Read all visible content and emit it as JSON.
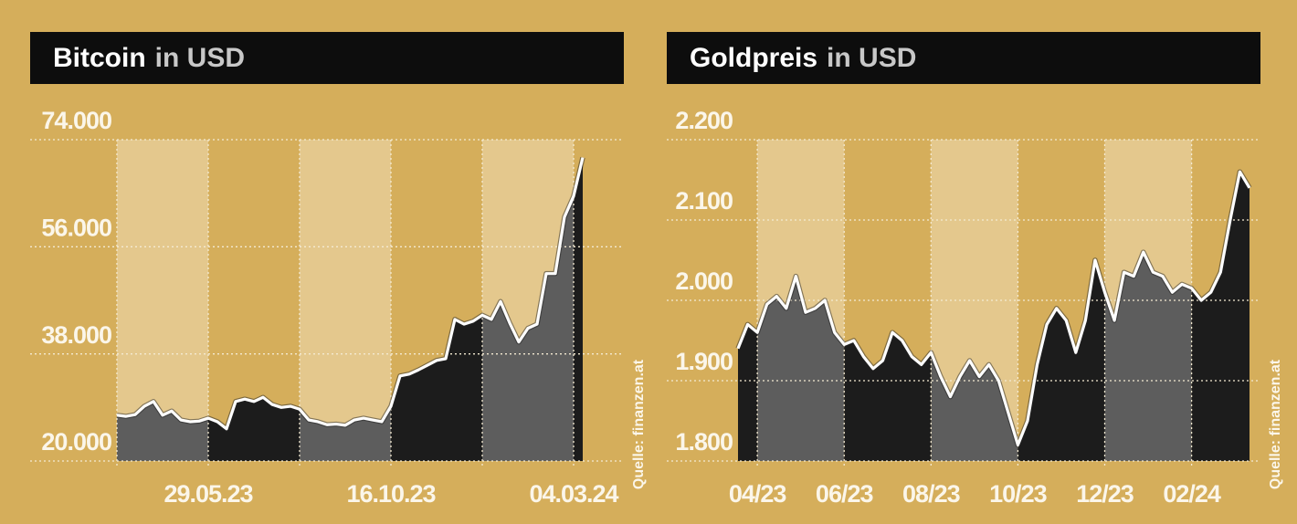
{
  "chart_data": [
    {
      "type": "area",
      "title": "Bitcoin",
      "unit": "in USD",
      "source": "Quelle: finanzen.at",
      "categories": [
        null,
        null,
        null,
        null,
        null,
        null,
        null,
        null,
        null,
        null,
        "29.05.23",
        null,
        null,
        null,
        null,
        null,
        null,
        null,
        null,
        null,
        null,
        null,
        null,
        null,
        null,
        null,
        null,
        null,
        null,
        null,
        "16.10.23",
        null,
        null,
        null,
        null,
        null,
        null,
        null,
        null,
        null,
        null,
        null,
        null,
        null,
        null,
        null,
        null,
        null,
        null,
        null,
        "04.03.24",
        null
      ],
      "values": [
        27700,
        27500,
        27800,
        29200,
        30000,
        27700,
        28400,
        26900,
        26600,
        26700,
        27200,
        26600,
        25400,
        30000,
        30400,
        30000,
        30700,
        29500,
        29000,
        29200,
        28700,
        26900,
        26600,
        26100,
        26200,
        26000,
        26900,
        27200,
        26900,
        26600,
        29200,
        34300,
        34600,
        35300,
        36100,
        36900,
        37200,
        43800,
        43000,
        43500,
        44500,
        43800,
        46800,
        43200,
        40000,
        42300,
        43000,
        51500,
        51500,
        61000,
        64500,
        71000
      ],
      "xticks": [
        0,
        10,
        20,
        30,
        40,
        50
      ],
      "ylim": [
        20000,
        74000
      ],
      "yticks": [
        {
          "value": 20000,
          "label": "20.000"
        },
        {
          "value": 38000,
          "label": "38.000"
        },
        {
          "value": 56000,
          "label": "56.000"
        },
        {
          "value": 74000,
          "label": "74.000"
        }
      ],
      "grid": true,
      "colors": {
        "band": "#e4c88d",
        "area": [
          "#5d5d5d",
          "#1c1c1c"
        ],
        "line": "#ffffff"
      }
    },
    {
      "type": "area",
      "title": "Goldpreis",
      "unit": "in USD",
      "source": "Quelle: finanzen.at",
      "categories": [
        null,
        null,
        "04/23",
        null,
        null,
        null,
        null,
        null,
        null,
        null,
        null,
        "06/23",
        null,
        null,
        null,
        null,
        null,
        null,
        null,
        null,
        "08/23",
        null,
        null,
        null,
        null,
        null,
        null,
        null,
        null,
        "10/23",
        null,
        null,
        null,
        null,
        null,
        null,
        null,
        null,
        "12/23",
        null,
        null,
        null,
        null,
        null,
        null,
        null,
        null,
        "02/24",
        null,
        null,
        null,
        null,
        null,
        null
      ],
      "values": [
        1940,
        1970,
        1960,
        1995,
        2005,
        1990,
        2030,
        1985,
        1990,
        2000,
        1960,
        1945,
        1950,
        1930,
        1915,
        1925,
        1960,
        1950,
        1930,
        1920,
        1935,
        1905,
        1880,
        1905,
        1925,
        1905,
        1920,
        1900,
        1860,
        1820,
        1850,
        1920,
        1970,
        1990,
        1975,
        1935,
        1975,
        2050,
        2010,
        1975,
        2035,
        2030,
        2060,
        2035,
        2030,
        2010,
        2020,
        2015,
        2000,
        2010,
        2035,
        2100,
        2160,
        2140
      ],
      "xticks": [
        2,
        11,
        20,
        29,
        38,
        47
      ],
      "ylim": [
        1800,
        2200
      ],
      "yticks": [
        {
          "value": 1800,
          "label": "1.800"
        },
        {
          "value": 1900,
          "label": "1.900"
        },
        {
          "value": 2000,
          "label": "2.000"
        },
        {
          "value": 2100,
          "label": "2.100"
        },
        {
          "value": 2200,
          "label": "2.200"
        }
      ],
      "grid": true,
      "colors": {
        "band": "#e4c88d",
        "area": [
          "#5d5d5d",
          "#1c1c1c"
        ],
        "line": "#ffffff"
      }
    }
  ]
}
